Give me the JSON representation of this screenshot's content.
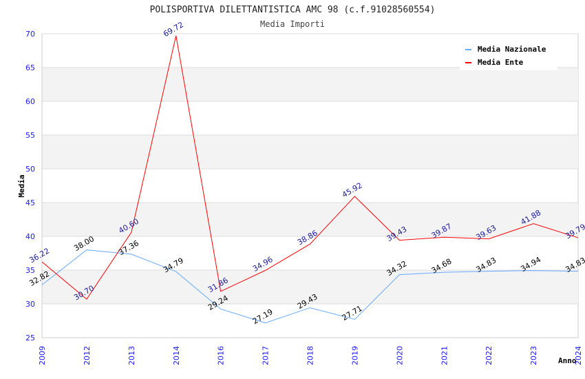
{
  "chart_data": {
    "type": "line",
    "title": "POLISPORTIVA DILETTANTISTICA AMC 98 (c.f.91028560554)",
    "subtitle": "Media Importi",
    "xlabel": "Anno",
    "ylabel": "Media",
    "ylim": [
      25,
      70
    ],
    "yticks": [
      25,
      30,
      35,
      40,
      45,
      50,
      55,
      60,
      65,
      70
    ],
    "categories": [
      "2009",
      "2012",
      "2013",
      "2014",
      "2016",
      "2017",
      "2018",
      "2019",
      "2020",
      "2021",
      "2022",
      "2023",
      "2024"
    ],
    "grid": true,
    "legend_position": "top-right",
    "series": [
      {
        "name": "Media Nazionale",
        "color": "#66aaff",
        "label_color": "#000000",
        "values": [
          32.82,
          38.0,
          37.36,
          34.79,
          29.24,
          27.19,
          29.43,
          27.71,
          34.32,
          34.68,
          34.83,
          34.94,
          34.83
        ],
        "labels": [
          "32.82",
          "38.00",
          "37.36",
          "34.79",
          "29.24",
          "27.19",
          "29.43",
          "27.71",
          "34.32",
          "34.68",
          "34.83",
          "34.94",
          "34.83"
        ]
      },
      {
        "name": "Media Ente",
        "color": "#ff0000",
        "label_color": "#1a1a99",
        "values": [
          36.22,
          30.7,
          40.6,
          69.72,
          31.86,
          34.96,
          38.86,
          45.92,
          39.43,
          39.87,
          39.63,
          41.88,
          39.79
        ],
        "labels": [
          "36.22",
          "30.70",
          "40.60",
          "69.72",
          "31.86",
          "34.96",
          "38.86",
          "45.92",
          "39.43",
          "39.87",
          "39.63",
          "41.88",
          "39.79"
        ]
      }
    ]
  }
}
